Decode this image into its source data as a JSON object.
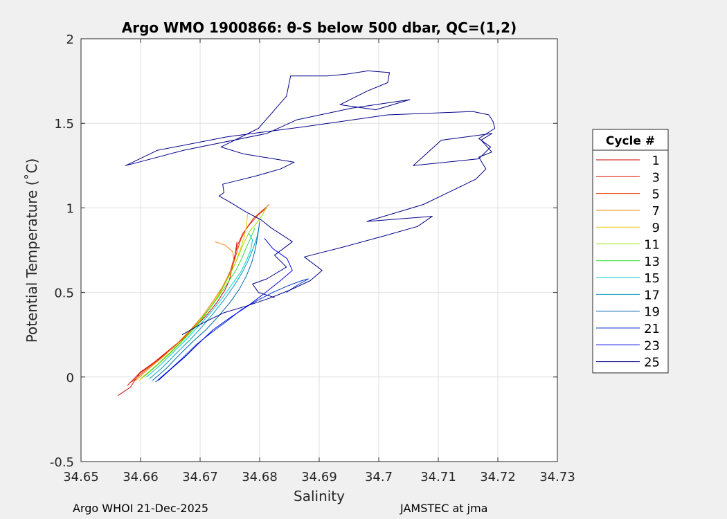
{
  "chart_data": {
    "type": "line",
    "title": "Argo WMO 1900866: θ-S below 500 dbar,  QC=(1,2)",
    "xlabel": "Salinity",
    "ylabel": "Potential Temperature (˚C)",
    "xlim": [
      34.65,
      34.73
    ],
    "ylim": [
      -0.5,
      2.0
    ],
    "xticks": [
      34.65,
      34.66,
      34.67,
      34.68,
      34.69,
      34.7,
      34.71,
      34.72,
      34.73
    ],
    "xtick_labels": [
      "34.65",
      "34.66",
      "34.67",
      "34.68",
      "34.69",
      "34.7",
      "34.71",
      "34.72",
      "34.73"
    ],
    "yticks": [
      -0.5,
      0,
      0.5,
      1,
      1.5,
      2
    ],
    "ytick_labels": [
      "-0.5",
      "0",
      "0.5",
      "1",
      "1.5",
      "2"
    ],
    "grid": true,
    "legend_position": "right",
    "legend_title": "Cycle #",
    "series": [
      {
        "name": "1",
        "color": "#cc0000",
        "points": [
          [
            34.6562,
            -0.11
          ],
          [
            34.6583,
            -0.06
          ],
          [
            34.6598,
            0.02
          ],
          [
            34.6624,
            0.09
          ],
          [
            34.6648,
            0.16
          ],
          [
            34.6672,
            0.23
          ],
          [
            34.6693,
            0.3
          ],
          [
            34.6712,
            0.37
          ],
          [
            34.6728,
            0.44
          ],
          [
            34.6741,
            0.51
          ],
          [
            34.6749,
            0.57
          ],
          [
            34.6753,
            0.63
          ],
          [
            34.6757,
            0.69
          ],
          [
            34.676,
            0.75
          ],
          [
            34.6762,
            0.8
          ]
        ]
      },
      {
        "name": "3",
        "color": "#dd1100",
        "points": [
          [
            34.6578,
            -0.05
          ],
          [
            34.66,
            0.03
          ],
          [
            34.6628,
            0.1
          ],
          [
            34.6652,
            0.17
          ],
          [
            34.6676,
            0.24
          ],
          [
            34.6697,
            0.32
          ],
          [
            34.6715,
            0.4
          ],
          [
            34.673,
            0.48
          ],
          [
            34.6742,
            0.56
          ],
          [
            34.6751,
            0.63
          ],
          [
            34.6757,
            0.7
          ],
          [
            34.6763,
            0.78
          ],
          [
            34.6772,
            0.85
          ],
          [
            34.6785,
            0.91
          ],
          [
            34.6798,
            0.96
          ],
          [
            34.6812,
            1.0
          ]
        ]
      },
      {
        "name": "5",
        "color": "#e83a00",
        "points": [
          [
            34.6585,
            -0.03
          ],
          [
            34.6608,
            0.04
          ],
          [
            34.6633,
            0.11
          ],
          [
            34.6657,
            0.18
          ],
          [
            34.668,
            0.26
          ],
          [
            34.6701,
            0.34
          ],
          [
            34.6719,
            0.42
          ],
          [
            34.6734,
            0.5
          ],
          [
            34.6746,
            0.58
          ],
          [
            34.6755,
            0.66
          ],
          [
            34.6761,
            0.73
          ],
          [
            34.6768,
            0.81
          ],
          [
            34.6778,
            0.88
          ],
          [
            34.679,
            0.94
          ],
          [
            34.6803,
            0.98
          ],
          [
            34.6816,
            1.02
          ]
        ]
      },
      {
        "name": "7",
        "color": "#f08000",
        "points": [
          [
            34.6592,
            -0.02
          ],
          [
            34.6614,
            0.05
          ],
          [
            34.6638,
            0.12
          ],
          [
            34.6662,
            0.2
          ],
          [
            34.6684,
            0.28
          ],
          [
            34.6704,
            0.36
          ],
          [
            34.6722,
            0.45
          ],
          [
            34.6737,
            0.53
          ],
          [
            34.6749,
            0.61
          ],
          [
            34.6757,
            0.68
          ],
          [
            34.6755,
            0.74
          ],
          [
            34.6742,
            0.78
          ],
          [
            34.6725,
            0.8
          ]
        ]
      },
      {
        "name": "9",
        "color": "#eecc00",
        "points": [
          [
            34.6598,
            -0.02
          ],
          [
            34.662,
            0.05
          ],
          [
            34.6644,
            0.12
          ],
          [
            34.6667,
            0.2
          ],
          [
            34.6689,
            0.29
          ],
          [
            34.6709,
            0.37
          ],
          [
            34.6726,
            0.46
          ],
          [
            34.674,
            0.54
          ],
          [
            34.6752,
            0.62
          ],
          [
            34.6761,
            0.69
          ],
          [
            34.6769,
            0.77
          ],
          [
            34.6775,
            0.84
          ],
          [
            34.6778,
            0.9
          ],
          [
            34.678,
            0.97
          ]
        ]
      },
      {
        "name": "11",
        "color": "#99dd00",
        "points": [
          [
            34.66,
            -0.01
          ],
          [
            34.6624,
            0.06
          ],
          [
            34.6648,
            0.14
          ],
          [
            34.6671,
            0.22
          ],
          [
            34.6692,
            0.3
          ],
          [
            34.6712,
            0.39
          ],
          [
            34.6729,
            0.47
          ],
          [
            34.6743,
            0.56
          ],
          [
            34.6755,
            0.64
          ],
          [
            34.6765,
            0.72
          ],
          [
            34.6773,
            0.79
          ],
          [
            34.6783,
            0.86
          ],
          [
            34.6795,
            0.91
          ],
          [
            34.6805,
            0.96
          ],
          [
            34.6812,
            1.01
          ]
        ]
      },
      {
        "name": "13",
        "color": "#33dd33",
        "points": [
          [
            34.6605,
            0.0
          ],
          [
            34.6628,
            0.07
          ],
          [
            34.6652,
            0.15
          ],
          [
            34.6675,
            0.23
          ],
          [
            34.6696,
            0.31
          ],
          [
            34.6715,
            0.4
          ],
          [
            34.6732,
            0.48
          ],
          [
            34.6747,
            0.56
          ],
          [
            34.676,
            0.63
          ],
          [
            34.677,
            0.7
          ],
          [
            34.6778,
            0.77
          ],
          [
            34.6786,
            0.83
          ],
          [
            34.6792,
            0.88
          ]
        ]
      },
      {
        "name": "15",
        "color": "#00cccc",
        "points": [
          [
            34.661,
            0.0
          ],
          [
            34.6633,
            0.07
          ],
          [
            34.6656,
            0.15
          ],
          [
            34.6679,
            0.23
          ],
          [
            34.67,
            0.31
          ],
          [
            34.672,
            0.39
          ],
          [
            34.6738,
            0.47
          ],
          [
            34.6754,
            0.55
          ],
          [
            34.6768,
            0.62
          ],
          [
            34.6778,
            0.69
          ],
          [
            34.6785,
            0.75
          ],
          [
            34.6788,
            0.81
          ],
          [
            34.6782,
            0.85
          ]
        ]
      },
      {
        "name": "17",
        "color": "#0099bb",
        "points": [
          [
            34.6615,
            -0.01
          ],
          [
            34.6638,
            0.06
          ],
          [
            34.666,
            0.14
          ],
          [
            34.6683,
            0.22
          ],
          [
            34.6704,
            0.3
          ],
          [
            34.6723,
            0.38
          ],
          [
            34.6741,
            0.46
          ],
          [
            34.6757,
            0.54
          ],
          [
            34.6771,
            0.62
          ],
          [
            34.6781,
            0.69
          ],
          [
            34.6789,
            0.76
          ],
          [
            34.6795,
            0.82
          ],
          [
            34.6798,
            0.87
          ]
        ]
      },
      {
        "name": "19",
        "color": "#0066aa",
        "points": [
          [
            34.662,
            -0.02
          ],
          [
            34.6643,
            0.05
          ],
          [
            34.6665,
            0.13
          ],
          [
            34.6688,
            0.21
          ],
          [
            34.671,
            0.28
          ],
          [
            34.6731,
            0.36
          ],
          [
            34.675,
            0.44
          ],
          [
            34.6766,
            0.52
          ],
          [
            34.6778,
            0.6
          ],
          [
            34.6787,
            0.68
          ],
          [
            34.6793,
            0.76
          ],
          [
            34.6797,
            0.84
          ],
          [
            34.68,
            0.92
          ]
        ]
      },
      {
        "name": "21",
        "color": "#0033cc",
        "points": [
          [
            34.6625,
            -0.03
          ],
          [
            34.6648,
            0.04
          ],
          [
            34.667,
            0.11
          ],
          [
            34.6693,
            0.19
          ],
          [
            34.6718,
            0.26
          ],
          [
            34.6745,
            0.33
          ],
          [
            34.677,
            0.4
          ],
          [
            34.6795,
            0.45
          ],
          [
            34.6822,
            0.5
          ],
          [
            34.6848,
            0.54
          ],
          [
            34.6871,
            0.57
          ],
          [
            34.6882,
            0.58
          ],
          [
            34.6862,
            0.54
          ],
          [
            34.6845,
            0.5
          ]
        ]
      },
      {
        "name": "23",
        "color": "#0000ee",
        "points": [
          [
            34.663,
            -0.02
          ],
          [
            34.6652,
            0.05
          ],
          [
            34.6675,
            0.12
          ],
          [
            34.6698,
            0.2
          ],
          [
            34.6722,
            0.28
          ],
          [
            34.675,
            0.35
          ],
          [
            34.678,
            0.42
          ],
          [
            34.681,
            0.5
          ],
          [
            34.6835,
            0.57
          ],
          [
            34.6855,
            0.63
          ],
          [
            34.6846,
            0.7
          ],
          [
            34.6822,
            0.76
          ],
          [
            34.6808,
            0.82
          ]
        ]
      },
      {
        "name": "25",
        "color": "#000088",
        "points": [
          [
            34.667,
            0.25
          ],
          [
            34.6705,
            0.32
          ],
          [
            34.674,
            0.38
          ],
          [
            34.6778,
            0.42
          ],
          [
            34.682,
            0.47
          ],
          [
            34.6855,
            0.52
          ],
          [
            34.6885,
            0.57
          ],
          [
            34.6905,
            0.63
          ],
          [
            34.6875,
            0.71
          ],
          [
            34.6942,
            0.77
          ],
          [
            34.7005,
            0.83
          ],
          [
            34.7065,
            0.89
          ],
          [
            34.709,
            0.95
          ],
          [
            34.698,
            0.92
          ],
          [
            34.7075,
            1.02
          ],
          [
            34.7163,
            1.17
          ],
          [
            34.718,
            1.23
          ],
          [
            34.7168,
            1.3
          ],
          [
            34.719,
            1.33
          ],
          [
            34.7172,
            1.4
          ],
          [
            34.719,
            1.44
          ],
          [
            34.7105,
            1.4
          ],
          [
            34.7058,
            1.25
          ],
          [
            34.7168,
            1.29
          ],
          [
            34.7188,
            1.36
          ],
          [
            34.7168,
            1.41
          ],
          [
            34.7195,
            1.47
          ],
          [
            34.7192,
            1.51
          ],
          [
            34.7185,
            1.55
          ],
          [
            34.7158,
            1.57
          ],
          [
            34.7015,
            1.55
          ],
          [
            34.6875,
            1.48
          ],
          [
            34.6745,
            1.42
          ],
          [
            34.6628,
            1.34
          ],
          [
            34.6575,
            1.25
          ],
          [
            34.6672,
            1.34
          ],
          [
            34.6812,
            1.44
          ],
          [
            34.6862,
            1.52
          ],
          [
            34.6955,
            1.59
          ],
          [
            34.7052,
            1.64
          ],
          [
            34.6995,
            1.58
          ],
          [
            34.6935,
            1.61
          ],
          [
            34.698,
            1.69
          ],
          [
            34.7015,
            1.74
          ],
          [
            34.7018,
            1.8
          ],
          [
            34.6982,
            1.81
          ],
          [
            34.6945,
            1.79
          ],
          [
            34.6914,
            1.78
          ],
          [
            34.6852,
            1.78
          ],
          [
            34.6845,
            1.66
          ],
          [
            34.6798,
            1.47
          ],
          [
            34.6735,
            1.36
          ],
          [
            34.6772,
            1.32
          ],
          [
            34.6858,
            1.27
          ],
          [
            34.6835,
            1.23
          ],
          [
            34.6795,
            1.19
          ],
          [
            34.6761,
            1.16
          ],
          [
            34.6738,
            1.14
          ],
          [
            34.674,
            1.09
          ],
          [
            34.6732,
            1.07
          ],
          [
            34.6752,
            1.03
          ],
          [
            34.6775,
            0.98
          ],
          [
            34.6802,
            0.93
          ],
          [
            34.682,
            0.88
          ],
          [
            34.6842,
            0.83
          ],
          [
            34.6855,
            0.8
          ],
          [
            34.6825,
            0.72
          ],
          [
            34.6845,
            0.65
          ],
          [
            34.6812,
            0.58
          ],
          [
            34.6788,
            0.55
          ],
          [
            34.6798,
            0.5
          ],
          [
            34.6825,
            0.47
          ]
        ]
      }
    ]
  },
  "footer": {
    "left": "Argo WHOI 21-Dec-2025",
    "right": "JAMSTEC at jma"
  }
}
